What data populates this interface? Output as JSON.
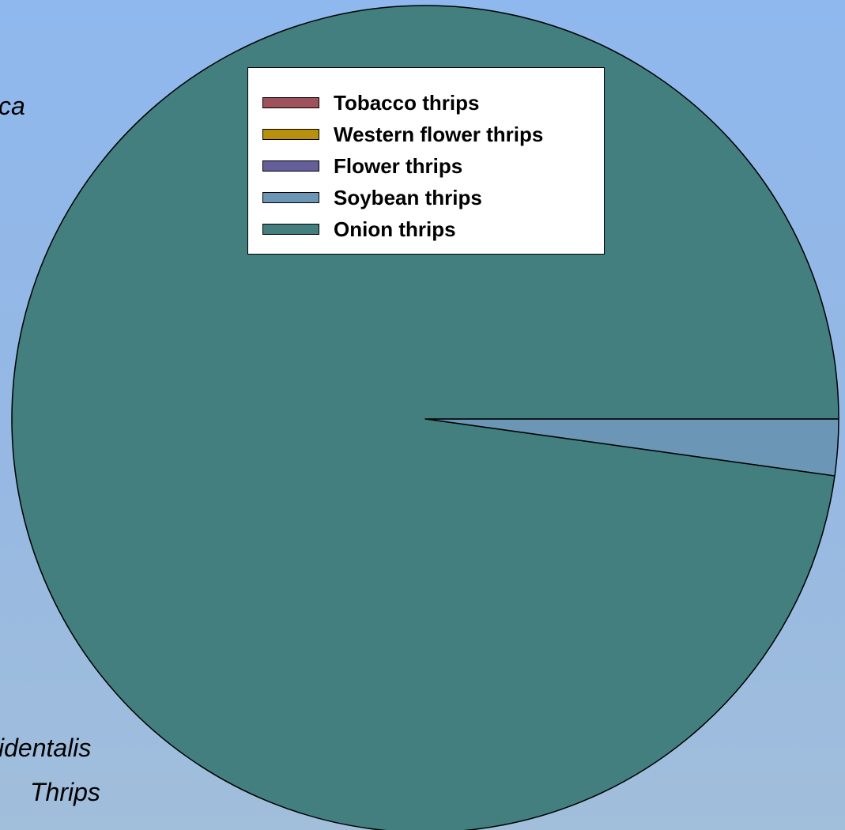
{
  "slide": {
    "text_fragments": [
      "ca",
      "identalis",
      "Thrips"
    ]
  },
  "chart_data": {
    "type": "pie",
    "title": "",
    "slices": [
      {
        "label": "Tobacco thrips",
        "value": 0.0,
        "color": "#a0525a"
      },
      {
        "label": "Western flower thrips",
        "value": 0.0,
        "color": "#b8900c"
      },
      {
        "label": "Flower thrips",
        "value": 0.0,
        "color": "#645f9a"
      },
      {
        "label": "Soybean thrips",
        "value": 2.2,
        "color": "#6b96b6"
      },
      {
        "label": "Onion thrips",
        "value": 97.8,
        "color": "#427f7e"
      }
    ],
    "legend": {
      "position": "top-right",
      "items": [
        "Tobacco thrips",
        "Western flower thrips",
        "Flower thrips",
        "Soybean thrips",
        "Onion thrips"
      ]
    }
  }
}
